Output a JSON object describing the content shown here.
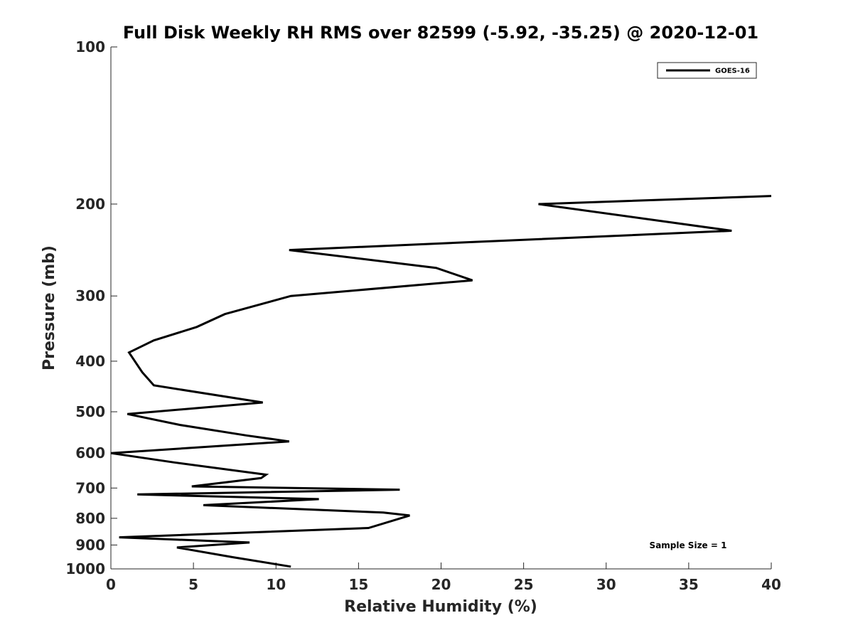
{
  "chart_data": {
    "type": "line",
    "title": "Full Disk Weekly RH RMS over 82599 (-5.92, -35.25) @ 2020-12-01",
    "xlabel": "Relative Humidity (%)",
    "ylabel": "Pressure (mb)",
    "xlim": [
      0,
      40
    ],
    "ylim": [
      100,
      1000
    ],
    "yscale": "log",
    "y_reversed": true,
    "grid": false,
    "legend_position": "top-right",
    "xticks": [
      0,
      5,
      10,
      15,
      20,
      25,
      30,
      35,
      40
    ],
    "xtick_labels": [
      "0",
      "5",
      "10",
      "15",
      "20",
      "25",
      "30",
      "35",
      "40"
    ],
    "yticks": [
      100,
      200,
      300,
      400,
      500,
      600,
      700,
      800,
      900,
      1000
    ],
    "ytick_labels": [
      "100",
      "200",
      "300",
      "400",
      "500",
      "600",
      "700",
      "800",
      "900",
      "1000"
    ],
    "series": [
      {
        "name": "GOES-16",
        "color": "#000000",
        "x": [
          40.0,
          25.9,
          37.6,
          10.8,
          19.7,
          21.9,
          10.9,
          6.9,
          5.2,
          2.6,
          1.1,
          1.9,
          2.6,
          9.2,
          1.0,
          4.2,
          8.2,
          10.8,
          0.0,
          3.8,
          9.4,
          9.1,
          4.9,
          17.5,
          1.6,
          12.6,
          5.6,
          16.5,
          18.1,
          15.6,
          0.5,
          8.4,
          4.0,
          7.4,
          10.9
        ],
        "y": [
          193,
          200,
          225,
          245,
          265,
          280,
          300,
          325,
          344,
          365,
          385,
          420,
          445,
          480,
          505,
          530,
          555,
          570,
          600,
          625,
          660,
          670,
          695,
          705,
          720,
          735,
          755,
          780,
          790,
          835,
          870,
          890,
          910,
          950,
          990
        ]
      }
    ],
    "annotations": [
      {
        "text": "Sample Size = 1",
        "position": "bottom-right"
      }
    ]
  }
}
